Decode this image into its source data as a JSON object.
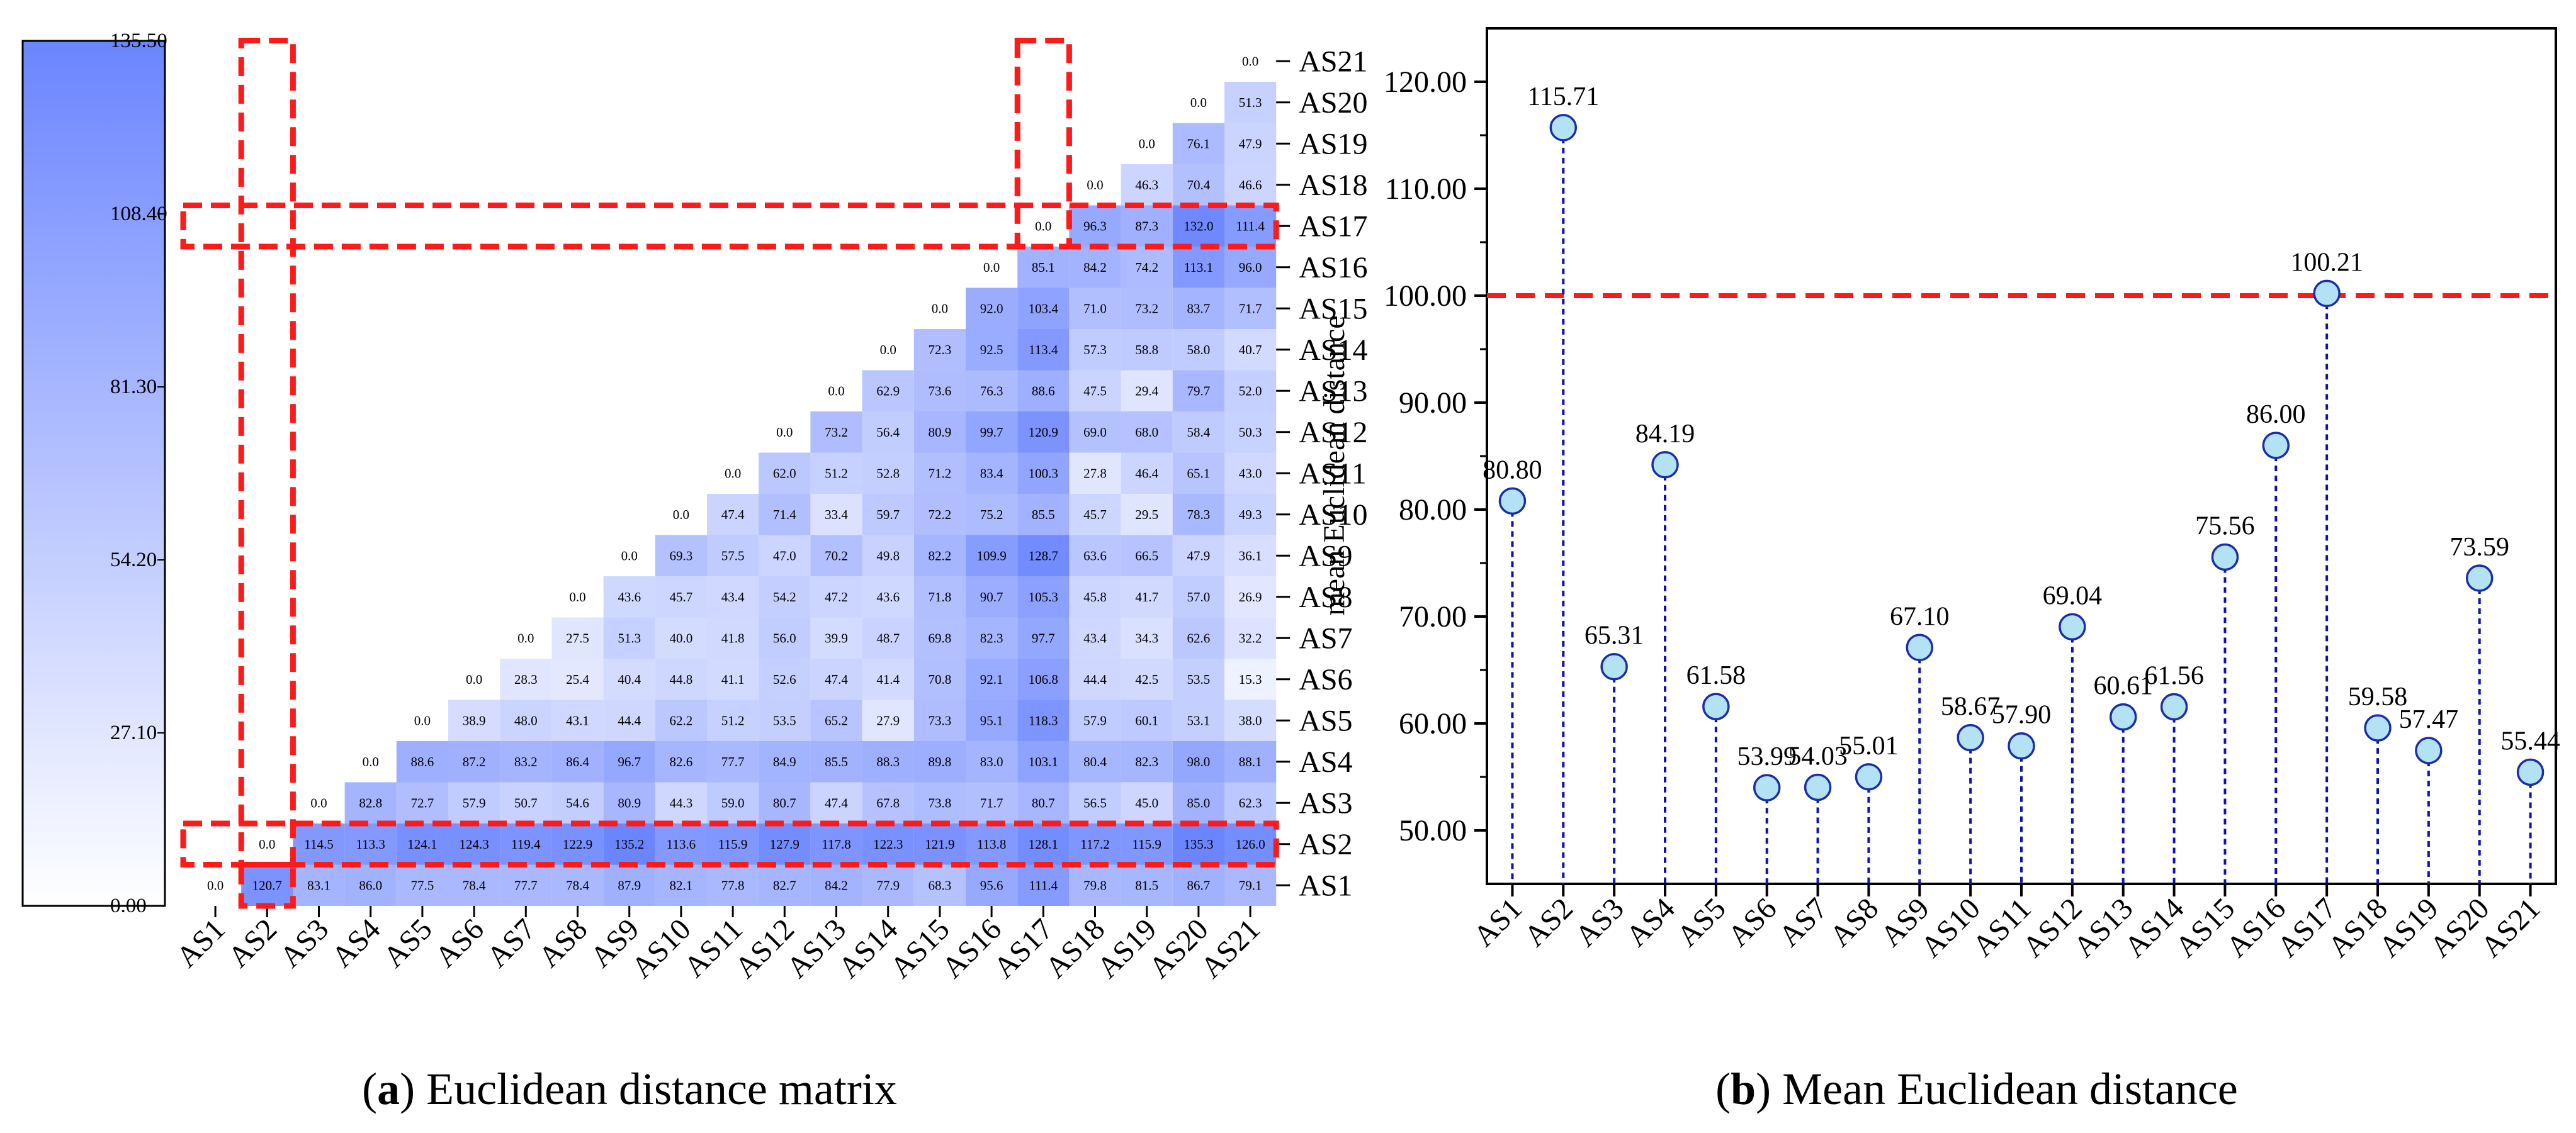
{
  "colors": {
    "accent": "#6b85ff",
    "highlight": "#ff1a1a",
    "stem": "#1010b0",
    "marker_fill": "#b3e2f5",
    "marker_edge": "#1a2ea8"
  },
  "chart_data": [
    {
      "type": "heatmap",
      "panel": "a",
      "title": "Euclidean distance matrix",
      "caption_letter": "a",
      "labels": [
        "AS1",
        "AS2",
        "AS3",
        "AS4",
        "AS5",
        "AS6",
        "AS7",
        "AS8",
        "AS9",
        "AS10",
        "AS11",
        "AS12",
        "AS13",
        "AS14",
        "AS15",
        "AS16",
        "AS17",
        "AS18",
        "AS19",
        "AS20",
        "AS21"
      ],
      "colorbar": {
        "min": 0.0,
        "max": 135.5,
        "ticks": [
          "0.00",
          "27.10",
          "54.20",
          "81.30",
          "108.40",
          "135.50"
        ]
      },
      "highlight": [
        "AS2",
        "AS17"
      ],
      "matrix_lower": [
        [],
        [
          120.7
        ],
        [
          83.1,
          114.5
        ],
        [
          86.0,
          113.3,
          82.8
        ],
        [
          77.5,
          124.1,
          72.7,
          88.6
        ],
        [
          78.4,
          124.3,
          57.9,
          87.2,
          38.9
        ],
        [
          77.7,
          119.4,
          50.7,
          83.2,
          48.0,
          28.3
        ],
        [
          78.4,
          122.9,
          54.6,
          86.4,
          43.1,
          25.4,
          27.5
        ],
        [
          87.9,
          135.2,
          80.9,
          96.7,
          44.4,
          40.4,
          51.3,
          43.6
        ],
        [
          82.1,
          113.6,
          44.3,
          82.6,
          62.2,
          44.8,
          40.0,
          45.7,
          69.3
        ],
        [
          77.8,
          115.9,
          59.0,
          77.7,
          51.2,
          41.1,
          41.8,
          43.4,
          57.5,
          47.4
        ],
        [
          82.7,
          127.9,
          80.7,
          84.9,
          53.5,
          52.6,
          56.0,
          54.2,
          47.0,
          71.4,
          62.0
        ],
        [
          84.2,
          117.8,
          47.4,
          85.5,
          65.2,
          47.4,
          39.9,
          47.2,
          70.2,
          33.4,
          51.2,
          73.2
        ],
        [
          77.9,
          122.3,
          67.8,
          88.3,
          27.9,
          41.4,
          48.7,
          43.6,
          49.8,
          59.7,
          52.8,
          56.4,
          62.9
        ],
        [
          68.3,
          121.9,
          73.8,
          89.8,
          73.3,
          70.8,
          69.8,
          71.8,
          82.2,
          72.2,
          71.2,
          80.9,
          73.6,
          72.3
        ],
        [
          95.6,
          113.8,
          71.7,
          83.0,
          95.1,
          92.1,
          82.3,
          90.7,
          109.9,
          75.2,
          83.4,
          99.7,
          76.3,
          92.5,
          92.0
        ],
        [
          111.4,
          128.1,
          80.7,
          103.1,
          118.3,
          106.8,
          97.7,
          105.3,
          128.7,
          85.5,
          100.3,
          120.9,
          88.6,
          113.4,
          103.4,
          85.1
        ],
        [
          79.8,
          117.2,
          56.5,
          80.4,
          57.9,
          44.4,
          43.4,
          45.8,
          63.6,
          45.7,
          27.8,
          69.0,
          47.5,
          57.3,
          71.0,
          84.2,
          96.3
        ],
        [
          81.5,
          115.9,
          45.0,
          82.3,
          60.1,
          42.5,
          34.3,
          41.7,
          66.5,
          29.5,
          46.4,
          68.0,
          29.4,
          58.8,
          73.2,
          74.2,
          87.3,
          46.3
        ],
        [
          86.7,
          135.3,
          85.0,
          98.0,
          53.1,
          53.5,
          62.6,
          57.0,
          47.9,
          78.3,
          65.1,
          58.4,
          79.7,
          58.0,
          83.7,
          113.1,
          132.0,
          70.4,
          76.1
        ],
        [
          79.1,
          126.0,
          62.3,
          88.1,
          38.0,
          15.3,
          32.2,
          26.9,
          36.1,
          49.3,
          43.0,
          50.3,
          52.0,
          40.7,
          71.7,
          96.0,
          111.4,
          46.6,
          47.9,
          51.3
        ]
      ],
      "diagonal_label": "0.0"
    },
    {
      "type": "scatter",
      "style": "stem",
      "panel": "b",
      "title": "Mean Euclidean distance",
      "caption_letter": "b",
      "categories": [
        "AS1",
        "AS2",
        "AS3",
        "AS4",
        "AS5",
        "AS6",
        "AS7",
        "AS8",
        "AS9",
        "AS10",
        "AS11",
        "AS12",
        "AS13",
        "AS14",
        "AS15",
        "AS16",
        "AS17",
        "AS18",
        "AS19",
        "AS20",
        "AS21"
      ],
      "values": [
        80.8,
        115.71,
        65.31,
        84.19,
        61.58,
        53.99,
        54.03,
        55.01,
        67.1,
        58.67,
        57.9,
        69.04,
        60.61,
        61.56,
        75.56,
        86.0,
        100.21,
        59.58,
        57.47,
        73.59,
        55.44
      ],
      "value_labels": [
        "80.80",
        "115.71",
        "65.31",
        "84.19",
        "61.58",
        "53.99",
        "54.03",
        "55.01",
        "67.10",
        "58.67",
        "57.90",
        "69.04",
        "60.61",
        "61.56",
        "75.56",
        "86.00",
        "100.21",
        "59.58",
        "57.47",
        "73.59",
        "55.44"
      ],
      "ylabel": "mean Euclidean distance",
      "xlabel": "",
      "ylim": [
        45,
        125
      ],
      "yticks": [
        "50.00",
        "60.00",
        "70.00",
        "80.00",
        "90.00",
        "100.00",
        "110.00",
        "120.00"
      ],
      "threshold": 100
    }
  ]
}
